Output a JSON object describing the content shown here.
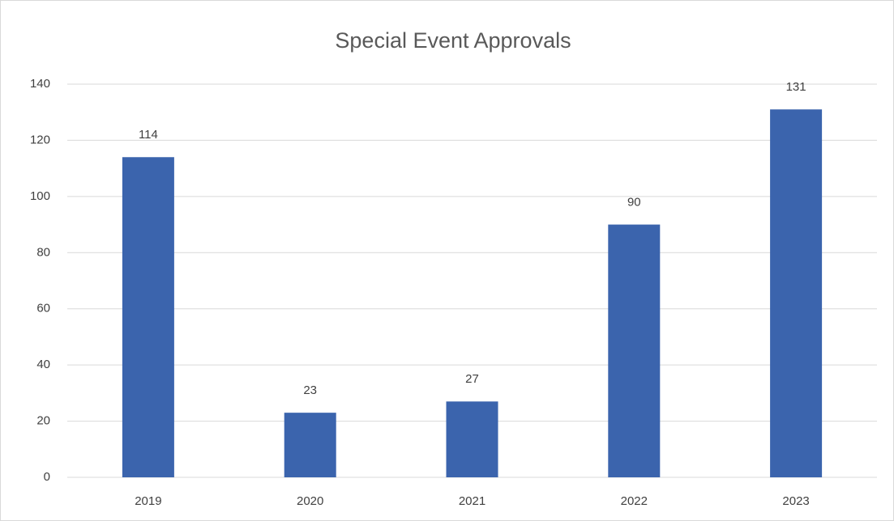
{
  "chart_data": {
    "type": "bar",
    "title": "Special Event Approvals",
    "categories": [
      "2019",
      "2020",
      "2021",
      "2022",
      "2023"
    ],
    "values": [
      114,
      23,
      27,
      90,
      131
    ],
    "color": "#3b64ad",
    "ylim": [
      0,
      140
    ],
    "yticks": [
      0,
      20,
      40,
      60,
      80,
      100,
      120,
      140
    ],
    "grid": true
  }
}
